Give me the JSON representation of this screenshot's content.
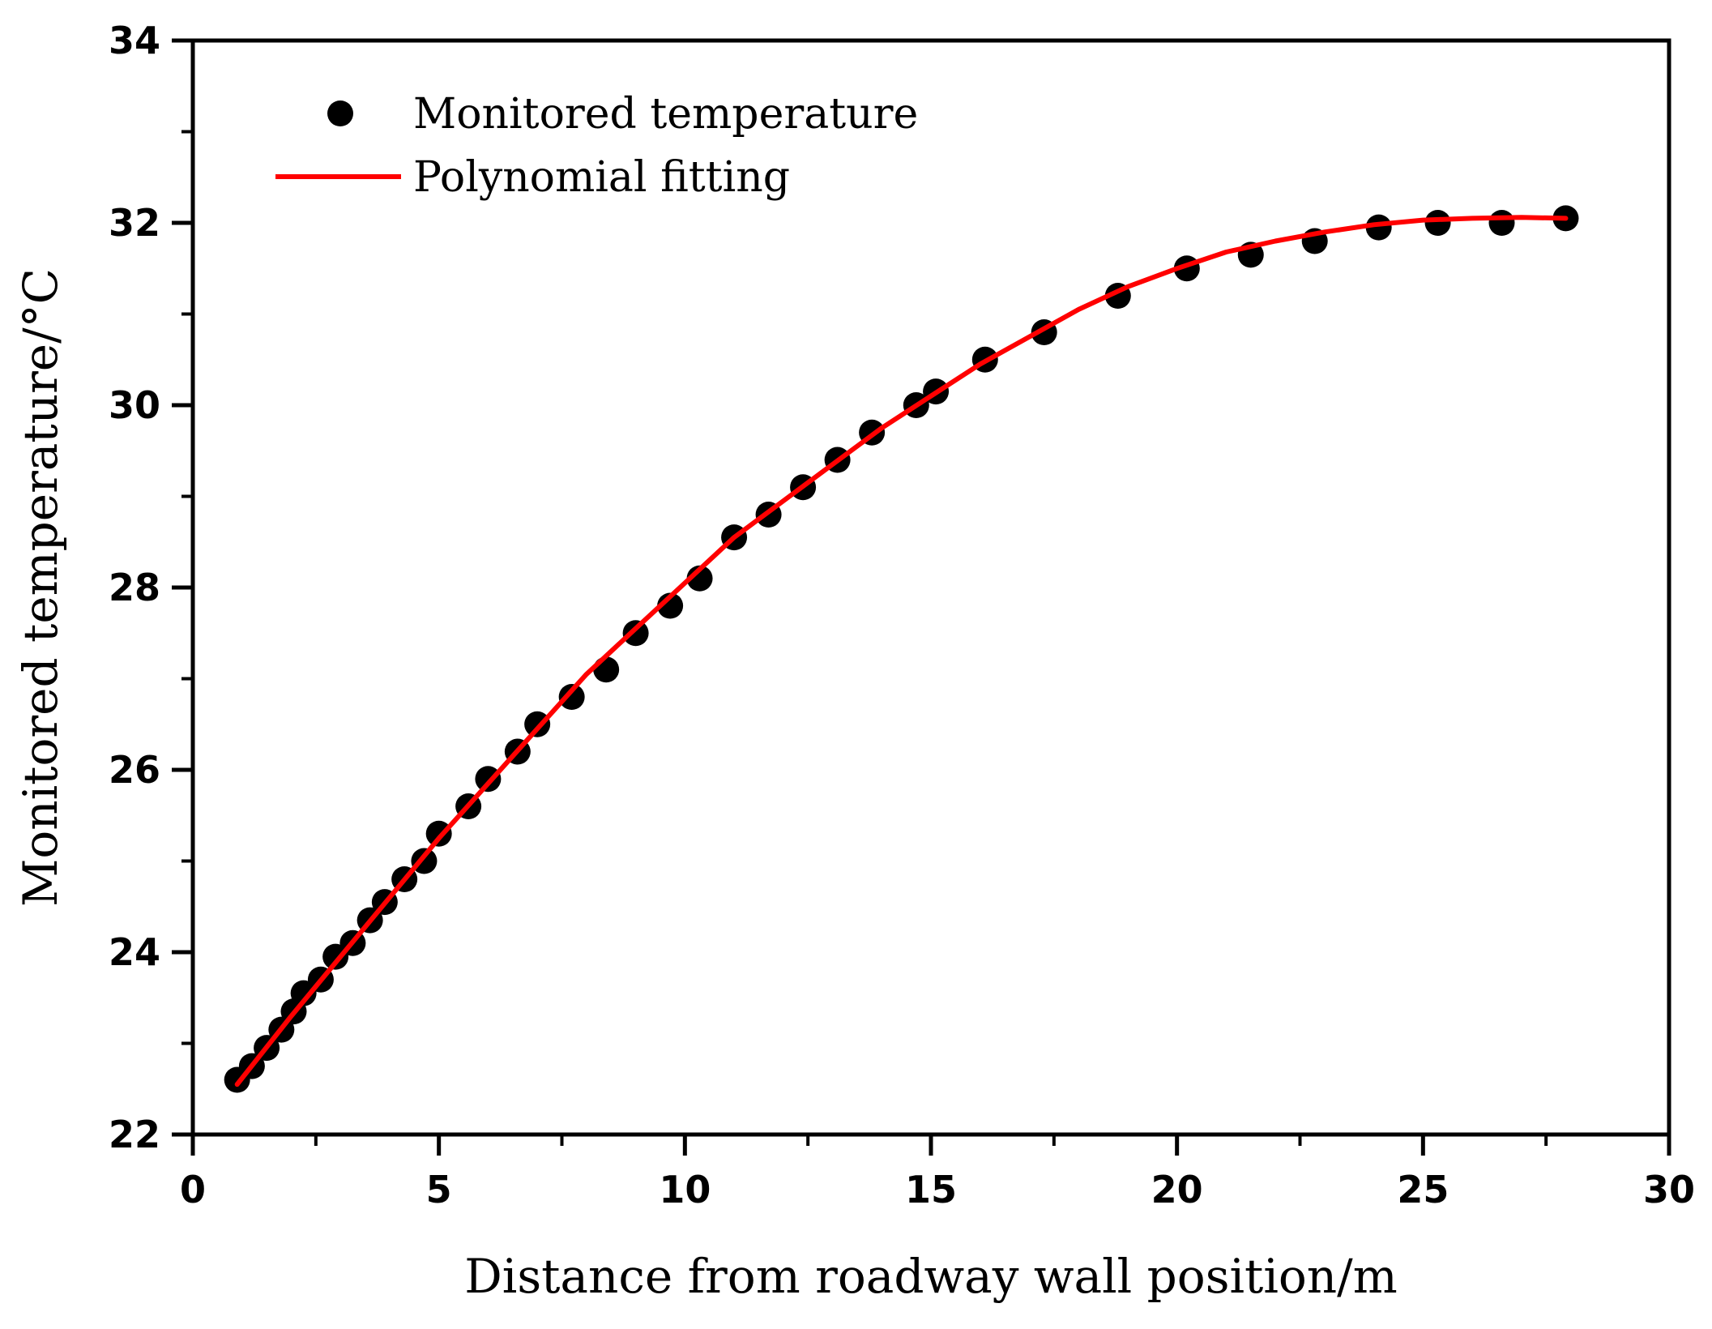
{
  "chart_data": {
    "type": "scatter",
    "title": "",
    "xlabel": "Distance from roadway wall position/m",
    "ylabel": "Monitored temperature/°C",
    "xlim": [
      0,
      30
    ],
    "ylim": [
      22,
      34
    ],
    "x_ticks": [
      "0",
      "5",
      "10",
      "15",
      "20",
      "25",
      "30"
    ],
    "y_ticks": [
      "22",
      "24",
      "26",
      "28",
      "30",
      "32",
      "34"
    ],
    "grid": false,
    "legend_position": "top-left",
    "series": [
      {
        "name": "Monitored temperature",
        "kind": "scatter",
        "color": "#000000",
        "x": [
          0.9,
          1.2,
          1.5,
          1.8,
          2.05,
          2.25,
          2.6,
          2.9,
          3.25,
          3.6,
          3.9,
          4.3,
          4.7,
          5.0,
          5.6,
          6.0,
          6.6,
          7.0,
          7.7,
          8.4,
          9.0,
          9.7,
          10.3,
          11.0,
          11.7,
          12.4,
          13.1,
          13.8,
          14.7,
          15.1,
          16.1,
          17.3,
          18.8,
          20.2,
          21.5,
          22.8,
          24.1,
          25.3,
          26.6,
          27.9
        ],
        "y": [
          22.6,
          22.75,
          22.95,
          23.15,
          23.35,
          23.55,
          23.7,
          23.95,
          24.1,
          24.35,
          24.55,
          24.8,
          25.0,
          25.3,
          25.6,
          25.9,
          26.2,
          26.5,
          26.8,
          27.1,
          27.5,
          27.8,
          28.1,
          28.55,
          28.8,
          29.1,
          29.4,
          29.7,
          30.0,
          30.15,
          30.5,
          30.8,
          31.2,
          31.5,
          31.65,
          31.8,
          31.95,
          32.0,
          32.0,
          32.05
        ]
      },
      {
        "name": "Polynomial fitting",
        "kind": "line",
        "color": "#ff0000",
        "x": [
          0.9,
          2,
          3,
          4,
          5,
          6,
          7,
          8,
          9,
          10,
          11,
          12,
          13,
          14,
          15,
          16,
          17,
          18,
          19,
          20,
          21,
          22,
          23,
          24,
          25,
          26,
          27,
          27.9
        ],
        "y": [
          22.55,
          23.3,
          23.95,
          24.6,
          25.25,
          25.85,
          26.45,
          27.05,
          27.55,
          28.05,
          28.55,
          28.95,
          29.35,
          29.75,
          30.1,
          30.45,
          30.75,
          31.05,
          31.3,
          31.5,
          31.68,
          31.8,
          31.9,
          31.98,
          32.03,
          32.05,
          32.06,
          32.05
        ]
      }
    ]
  }
}
